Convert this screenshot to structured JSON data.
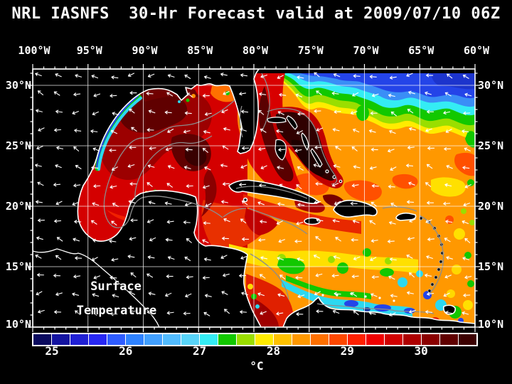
{
  "title": "NRL IASNFS  30-Hr Forecast valid at 2009/07/10 06Z",
  "map": {
    "top_axis_ticks": [
      "100°W",
      "95°W",
      "90°W",
      "85°W",
      "80°W",
      "75°W",
      "70°W",
      "65°W",
      "60°W"
    ],
    "left_axis_ticks": [
      "30°N",
      "25°N",
      "20°N",
      "15°N",
      "10°N"
    ],
    "right_axis_ticks": [
      "30°N",
      "25°N",
      "20°N",
      "15°N",
      "10°N"
    ],
    "annotation": {
      "line1": "Surface",
      "line2": "Temperature"
    }
  },
  "colorbar": {
    "tick_labels": [
      "25",
      "26",
      "27",
      "28",
      "29",
      "30"
    ],
    "unit": "°C",
    "min_c": 24.75,
    "max_c": 30.75,
    "cell_step_c": 0.25,
    "cell_colors": [
      "#0a0a5e",
      "#1414a0",
      "#2020d4",
      "#2828f4",
      "#2e5cff",
      "#2e82ff",
      "#42a0ff",
      "#52bcff",
      "#58d4f8",
      "#34ecf4",
      "#12c800",
      "#9ade00",
      "#ffec00",
      "#ffc200",
      "#ff9800",
      "#ff7000",
      "#ff4800",
      "#ff2000",
      "#f00000",
      "#d00000",
      "#ae0000",
      "#8a0000",
      "#600000",
      "#3c0000"
    ]
  },
  "chart_data": {
    "type": "heatmap",
    "title": "NRL IASNFS 30-Hr Forecast valid at 2009/07/10 06Z",
    "model": "NRL IASNFS",
    "forecast_hours": 30,
    "valid_time": "2009/07/10 06Z",
    "variable": "Surface Temperature",
    "unit": "°C",
    "x_axis": {
      "ticks": [
        "100°W",
        "95°W",
        "90°W",
        "85°W",
        "80°W",
        "75°W",
        "70°W",
        "65°W",
        "60°W"
      ],
      "lon_range_deg_w": [
        100,
        60
      ]
    },
    "y_axis": {
      "ticks": [
        "30°N",
        "25°N",
        "20°N",
        "15°N",
        "10°N"
      ],
      "lat_range_deg_n": [
        10,
        31.4
      ]
    },
    "color_scale": {
      "labeled_values_c": [
        25,
        26,
        27,
        28,
        29,
        30
      ],
      "min_c": 24.75,
      "max_c": 30.75,
      "step_c": 0.25,
      "colors": [
        "#0a0a5e",
        "#1414a0",
        "#2020d4",
        "#2828f4",
        "#2e5cff",
        "#2e82ff",
        "#42a0ff",
        "#52bcff",
        "#58d4f8",
        "#34ecf4",
        "#12c800",
        "#9ade00",
        "#ffec00",
        "#ffc200",
        "#ff9800",
        "#ff7000",
        "#ff4800",
        "#ff2000",
        "#f00000",
        "#d00000",
        "#ae0000",
        "#8a0000",
        "#600000",
        "#3c0000"
      ]
    },
    "regions_depicted": [
      "Gulf of Mexico: 29.5-31 °C (red to dark red) with cool upwelled band 25-27 °C along Texas-Mexico coast",
      "Atlantic north of ~29N: gradient 26-28 °C (blue/cyan/green/yellow bands)",
      "Gulf Stream / Bahamas banks: >30.5 °C (near-black dark red)",
      "Caribbean: 28.5-29.5 °C orange, 27.5-28 °C yellow-green in south",
      "Venezuela-Colombia coastal upwelling: 25.5-27 °C (cyan/blue)"
    ],
    "overlays": [
      "white surface wind vector arrows",
      "gray bathymetry contours",
      "white coastlines",
      "white 5-degree graticule"
    ]
  }
}
